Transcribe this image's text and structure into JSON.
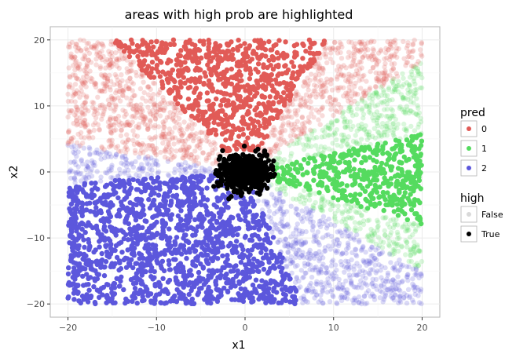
{
  "chart_data": {
    "type": "scatter",
    "title": "areas with high prob are highlighted",
    "xlabel": "x1",
    "ylabel": "x2",
    "xlim": [
      -22,
      22
    ],
    "ylim": [
      -22,
      22
    ],
    "x_ticks": [
      -20,
      -10,
      0,
      10,
      20
    ],
    "x_tick_labels": [
      "−20",
      "−10",
      "0",
      "10",
      "20"
    ],
    "y_ticks": [
      -20,
      -10,
      0,
      10,
      20
    ],
    "y_tick_labels": [
      "−20",
      "−10",
      "0",
      "10",
      "20"
    ],
    "grid": true,
    "legend_position": "right",
    "legends": [
      {
        "title": "pred",
        "entries": [
          {
            "label": "0",
            "color": "#E15B57"
          },
          {
            "label": "1",
            "color": "#55DB5F"
          },
          {
            "label": "2",
            "color": "#5C57DC"
          }
        ]
      },
      {
        "title": "high",
        "entries": [
          {
            "label": "False",
            "color": "#D9D9D9"
          },
          {
            "label": "True",
            "color": "#000000"
          }
        ]
      }
    ],
    "point_domain": {
      "x": [
        -20,
        20
      ],
      "y": [
        -20,
        20
      ]
    },
    "regions": [
      {
        "pred": "0",
        "high": "True",
        "angle_range_deg": [
          65,
          127
        ],
        "color": "#E15B57",
        "opacity": 1.0
      },
      {
        "pred": "0",
        "high": "False",
        "angle_range_deg": [
          40,
          65
        ],
        "color": "#E15B57",
        "opacity": 0.22
      },
      {
        "pred": "0",
        "high": "False",
        "angle_range_deg": [
          127,
          168
        ],
        "color": "#E15B57",
        "opacity": 0.22
      },
      {
        "pred": "2",
        "high": "False",
        "angle_range_deg": [
          168,
          185
        ],
        "color": "#5C57DC",
        "opacity": 0.22
      },
      {
        "pred": "2",
        "high": "True",
        "angle_range_deg": [
          185,
          288
        ],
        "color": "#5C57DC",
        "opacity": 1.0
      },
      {
        "pred": "2",
        "high": "False",
        "angle_range_deg": [
          288,
          323
        ],
        "color": "#5C57DC",
        "opacity": 0.22
      },
      {
        "pred": "1",
        "high": "False",
        "angle_range_deg": [
          323,
          338
        ],
        "color": "#55DB5F",
        "opacity": 0.22
      },
      {
        "pred": "1",
        "high": "True",
        "angle_range_deg": [
          338,
          376
        ],
        "color": "#55DB5F",
        "opacity": 1.0
      },
      {
        "pred": "1",
        "high": "False",
        "angle_range_deg": [
          16,
          40
        ],
        "color": "#55DB5F",
        "opacity": 0.22
      }
    ],
    "center_cluster": {
      "high": "True",
      "color": "#000000",
      "center": [
        0,
        0
      ],
      "radius": 3.5
    }
  }
}
